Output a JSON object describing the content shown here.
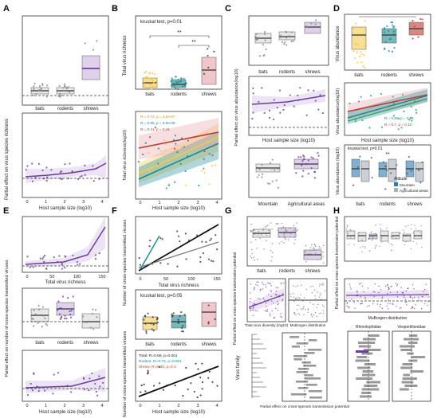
{
  "figure": {
    "panel_letters": [
      "A",
      "B",
      "C",
      "D",
      "E",
      "F",
      "G",
      "H"
    ],
    "colors": {
      "purple": "#6a3d9a",
      "purple_fill": "#c9b3e0",
      "gray_fill": "#d9d9d9",
      "pink": "#e8a0a8",
      "teal": "#1b8a8f",
      "yellow": "#f2c94c",
      "red": "#c0392b",
      "blue": "#2b7cb3",
      "green": "#2ca25f",
      "black": "#111111"
    }
  },
  "panels": {
    "A": {
      "top": {
        "categories": [
          "bats",
          "rodents",
          "shrews"
        ],
        "ylabel": "Partial effect on virus species richness",
        "medians": [
          10,
          10,
          55
        ],
        "ylim": [
          0,
          150
        ]
      },
      "bottom": {
        "xlabel": "Host sample size (log10)",
        "xticks": [
          "0",
          "1",
          "2",
          "3",
          "4"
        ]
      }
    },
    "B": {
      "top": {
        "note": "kruskal test, p=0.01",
        "categories": [
          "bats",
          "rodents",
          "shrews"
        ],
        "ylabel": "Total virus richness",
        "medians": [
          10,
          10,
          40
        ],
        "sig": [
          "**",
          "**"
        ]
      },
      "bottom": {
        "ylabel": "Total virus richness(log10)",
        "xlabel": "Host sample size (log10)",
        "xticks": [
          "0",
          "1",
          "2",
          "3",
          "4"
        ],
        "stats": [
          "R = 0.72, p = 4.2e-07",
          "R = 0.85, p = 9.9e-08",
          "R = 0.41, p = 0.41"
        ]
      }
    },
    "C": {
      "top": {
        "categories": [
          "bats",
          "rodents",
          "shrews"
        ],
        "medians": [
          0.3,
          0.35,
          0.6
        ]
      },
      "middle": {
        "ylabel": "Partial effect on virus abundance(log10)",
        "xlabel": "Host sample size (log10)"
      },
      "bottom": {
        "categories": [
          "Mountain",
          "Agricultural areas"
        ]
      }
    },
    "D": {
      "top": {
        "categories": [
          "bats",
          "rodents",
          "shrews"
        ],
        "ylabel": "Virus abundance"
      },
      "middle": {
        "ylabel": "Virus abundance(log10)",
        "xlabel": "Host sample size (log10)",
        "stats": [
          "R = 0.55, p = 0.01",
          "R = 0.7, p = 0.12"
        ]
      },
      "bottom": {
        "note": "kruskal test, p=0.01",
        "ylabel": "Virus abundance (log10)",
        "categories": [
          "bats",
          "rodents",
          "shrews"
        ],
        "legend_title": "Altitude",
        "legend": [
          "Mountain",
          "Agricultural areas"
        ],
        "sig": "**"
      }
    },
    "E": {
      "top": {
        "xlabel": "Total virus richness",
        "xticks": [
          "0",
          "50",
          "100",
          "150"
        ]
      },
      "middle": {
        "categories": [
          "bats",
          "rodents",
          "shrews"
        ],
        "ylabel": "Partial effect on number of cross-species transmitted viruses"
      },
      "bottom": {
        "xlabel": "Host sample size (log10)",
        "xticks": [
          "0",
          "1",
          "2",
          "3",
          "4"
        ]
      }
    },
    "F": {
      "top": {
        "ylabel": "Number of cross-species transmitted viruses",
        "xlabel": "Total virus richness",
        "xticks": [
          "0",
          "50",
          "100",
          "150"
        ]
      },
      "middle": {
        "note": "kruskal test, p=0.05",
        "categories": [
          "bats",
          "rodents",
          "shrews"
        ]
      },
      "bottom": {
        "ylabel": "Number of cross-species transmitted viruses",
        "xlabel": "Host sample size (log10)",
        "xticks": [
          "0",
          "1",
          "2",
          "3",
          "4"
        ],
        "stats": [
          "Total: R=0.66, p=0.001",
          "Rodent: R=0.75, p=0.001",
          "Shrew: R=0.35, p=0.3"
        ]
      }
    },
    "G": {
      "top": {
        "categories": [
          "bats",
          "rodents",
          "shrews"
        ]
      },
      "middle": {
        "ylabel": "Partial effect on cross-species transmission potential",
        "xlabels": [
          "Total virus diversity (log10)",
          "MuBorgen distribution"
        ]
      },
      "bottom": {
        "ylabel": "Virus family",
        "xlabel": "Partial effect on cross-species transmission potential"
      }
    },
    "H": {
      "top": {
        "ylabel": "Partial effect on cross-species transmission potential"
      },
      "middle": {
        "xlabel": "MuBorgen distribution"
      },
      "bottom": {
        "titles": [
          "Rhinolophidae",
          "Vespertilionidae"
        ]
      }
    }
  },
  "chart_data": [
    {
      "panel": "A-top",
      "type": "box",
      "categories": [
        "bats",
        "rodents",
        "shrews"
      ],
      "medians": [
        10,
        10,
        55
      ]
    },
    {
      "panel": "A-bottom",
      "type": "line",
      "x": [
        0,
        1,
        2,
        3,
        4,
        4.5
      ],
      "y": [
        5,
        6,
        8,
        10,
        15,
        25
      ]
    },
    {
      "panel": "B-top",
      "type": "box",
      "categories": [
        "bats",
        "rodents",
        "shrews"
      ],
      "medians": [
        10,
        10,
        40
      ]
    },
    {
      "panel": "B-bottom",
      "type": "scatter",
      "series": [
        {
          "values_x": [
            0,
            4.5
          ],
          "values_y": [
            0.1,
            0.95
          ]
        },
        {
          "values_x": [
            0,
            4.5
          ],
          "values_y": [
            0.2,
            1.2
          ]
        },
        {
          "values_x": [
            0,
            4.5
          ],
          "values_y": [
            0.9,
            1.5
          ]
        }
      ]
    },
    {
      "panel": "E-top",
      "type": "line",
      "x": [
        0,
        40,
        80,
        120,
        150
      ],
      "y": [
        0,
        0.5,
        1.2,
        4,
        10
      ]
    },
    {
      "panel": "F-top",
      "type": "scatter",
      "series": [
        {
          "values_x": [
            0,
            150
          ],
          "values_y": [
            0,
            95
          ]
        },
        {
          "values_x": [
            0,
            150
          ],
          "values_y": [
            2,
            70
          ]
        }
      ]
    }
  ]
}
